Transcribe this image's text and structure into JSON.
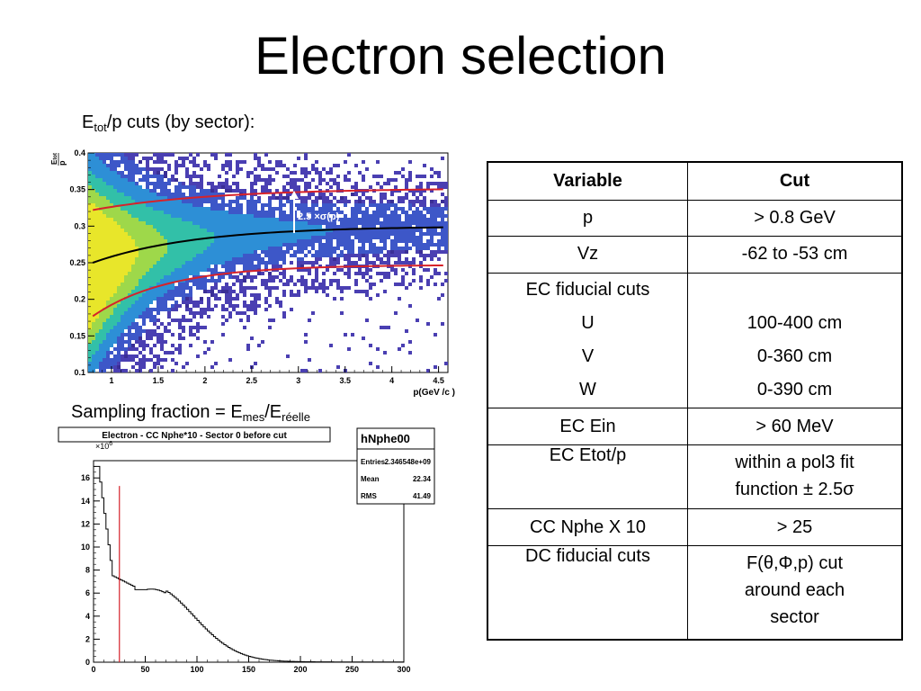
{
  "slide": {
    "title": "Electron selection",
    "caption1": {
      "pre": "E",
      "sub": "tot",
      "post": "/p cuts (by sector):"
    },
    "caption2": {
      "pre": "Sampling fraction = E",
      "sub1": "mes",
      "mid": "/E",
      "sub2": "réelle"
    }
  },
  "top_plot": {
    "ylabel_num": "E",
    "ylabel_sub": "tot",
    "ylabel_den": "p",
    "xlabel": "p(GeV /c )",
    "xticks": [
      "1",
      "1.5",
      "2",
      "2.5",
      "3",
      "3.5",
      "4",
      "4.5"
    ],
    "yticks": [
      "0.1",
      "0.15",
      "0.2",
      "0.25",
      "0.3",
      "0.35",
      "0.4"
    ],
    "annotation": "2.5 ×σ(p)",
    "colors": {
      "band": "#d6222a",
      "fit": "#000000",
      "density_low": "#3b2fa0",
      "density_high": "#e6e600"
    }
  },
  "bottom_plot": {
    "title": "Electron - CC Nphe*10 - Sector 0 before cut",
    "stats": {
      "name": "hNphe00",
      "rows": [
        {
          "k": "Entries",
          "v": "2.346548e+09"
        },
        {
          "k": "Mean",
          "v": "22.34"
        },
        {
          "k": "RMS",
          "v": "41.49"
        }
      ]
    },
    "exponent": "×10",
    "exponent_power": "6",
    "xticks": [
      "0",
      "50",
      "100",
      "150",
      "200",
      "250",
      "300"
    ],
    "yticks": [
      "0",
      "2",
      "4",
      "6",
      "8",
      "10",
      "12",
      "14",
      "16"
    ],
    "cut_line_x": 25
  },
  "table": {
    "headers": [
      "Variable",
      "Cut"
    ],
    "rows": [
      {
        "var": [
          "p"
        ],
        "cut": [
          "> 0.8 GeV"
        ]
      },
      {
        "var": [
          "Vz"
        ],
        "cut": [
          "-62 to -53 cm"
        ]
      },
      {
        "var": [
          "EC fiducial cuts",
          "U",
          "V",
          "W"
        ],
        "cut": [
          "",
          "100-400 cm",
          "0-360 cm",
          "0-390 cm"
        ]
      },
      {
        "var": [
          "EC Ein"
        ],
        "cut": [
          "> 60 MeV"
        ]
      },
      {
        "var": [
          "EC Etot/p"
        ],
        "cut": [
          "within a pol3 fit",
          "function ± 2.5σ"
        ]
      },
      {
        "var": [
          "CC Nphe X 10"
        ],
        "cut": [
          "> 25"
        ]
      },
      {
        "var": [
          "DC fiducial cuts"
        ],
        "cut": [
          "F(θ,Φ,p) cut",
          "around each",
          "sector"
        ]
      }
    ]
  }
}
